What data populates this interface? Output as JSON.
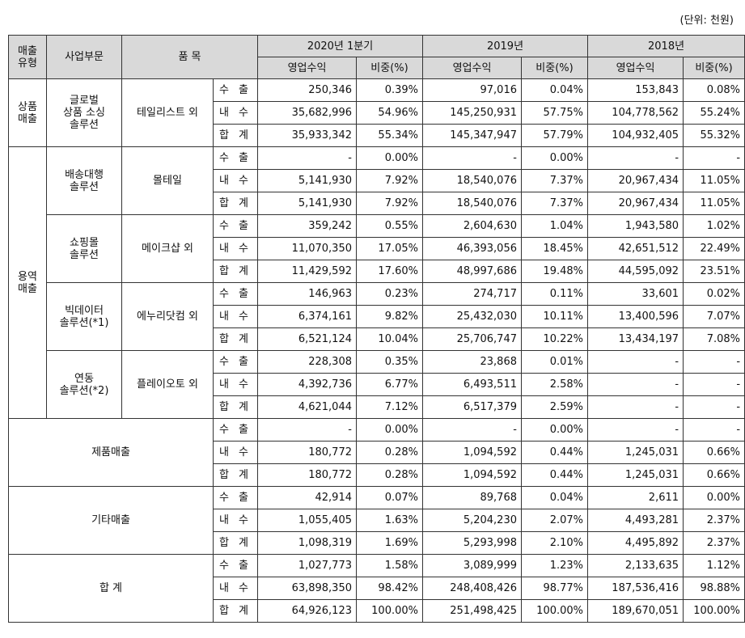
{
  "unit_note": "(단위: 천원)",
  "header": {
    "col_type": [
      "매출",
      "유형"
    ],
    "col_division": "사업부문",
    "col_item": "품 목",
    "periods": [
      "2020년 1분기",
      "2019년",
      "2018년"
    ],
    "sub_revenue": "영업수익",
    "sub_ratio": "비중(%)"
  },
  "groups": [
    {
      "type_lines": [
        "상품",
        "매출"
      ],
      "divisions": [
        {
          "name_lines": [
            "글로벌",
            "상품 소싱",
            "솔루션"
          ],
          "item": "테일리스트 외",
          "rows": [
            {
              "dir": "수 출",
              "v": [
                "250,346",
                "0.39%",
                "97,016",
                "0.04%",
                "153,843",
                "0.08%"
              ]
            },
            {
              "dir": "내 수",
              "v": [
                "35,682,996",
                "54.96%",
                "145,250,931",
                "57.75%",
                "104,778,562",
                "55.24%"
              ]
            },
            {
              "dir": "합 계",
              "v": [
                "35,933,342",
                "55.34%",
                "145,347,947",
                "57.79%",
                "104,932,405",
                "55.32%"
              ]
            }
          ]
        }
      ]
    },
    {
      "type_lines": [
        "용역",
        "매출"
      ],
      "divisions": [
        {
          "name_lines": [
            "배송대행",
            "솔루션"
          ],
          "item": "몰테일",
          "rows": [
            {
              "dir": "수 출",
              "v": [
                "-",
                "0.00%",
                "-",
                "0.00%",
                "-",
                "-"
              ]
            },
            {
              "dir": "내 수",
              "v": [
                "5,141,930",
                "7.92%",
                "18,540,076",
                "7.37%",
                "20,967,434",
                "11.05%"
              ]
            },
            {
              "dir": "합 계",
              "v": [
                "5,141,930",
                "7.92%",
                "18,540,076",
                "7.37%",
                "20,967,434",
                "11.05%"
              ]
            }
          ]
        },
        {
          "name_lines": [
            "쇼핑몰",
            "솔루션"
          ],
          "item": "메이크샵 외",
          "rows": [
            {
              "dir": "수 출",
              "v": [
                "359,242",
                "0.55%",
                "2,604,630",
                "1.04%",
                "1,943,580",
                "1.02%"
              ]
            },
            {
              "dir": "내 수",
              "v": [
                "11,070,350",
                "17.05%",
                "46,393,056",
                "18.45%",
                "42,651,512",
                "22.49%"
              ]
            },
            {
              "dir": "합 계",
              "v": [
                "11,429,592",
                "17.60%",
                "48,997,686",
                "19.48%",
                "44,595,092",
                "23.51%"
              ]
            }
          ]
        },
        {
          "name_lines": [
            "빅데이터",
            "솔루션(*1)"
          ],
          "item": "에누리닷컴 외",
          "rows": [
            {
              "dir": "수 출",
              "v": [
                "146,963",
                "0.23%",
                "274,717",
                "0.11%",
                "33,601",
                "0.02%"
              ]
            },
            {
              "dir": "내 수",
              "v": [
                "6,374,161",
                "9.82%",
                "25,432,030",
                "10.11%",
                "13,400,596",
                "7.07%"
              ]
            },
            {
              "dir": "합 계",
              "v": [
                "6,521,124",
                "10.04%",
                "25,706,747",
                "10.22%",
                "13,434,197",
                "7.08%"
              ]
            }
          ]
        },
        {
          "name_lines": [
            "연동",
            "솔루션(*2)"
          ],
          "item": "플레이오토 외",
          "rows": [
            {
              "dir": "수 출",
              "v": [
                "228,308",
                "0.35%",
                "23,868",
                "0.01%",
                "-",
                "-"
              ]
            },
            {
              "dir": "내 수",
              "v": [
                "4,392,736",
                "6.77%",
                "6,493,511",
                "2.58%",
                "-",
                "-"
              ]
            },
            {
              "dir": "합 계",
              "v": [
                "4,621,044",
                "7.12%",
                "6,517,379",
                "2.59%",
                "-",
                "-"
              ]
            }
          ]
        }
      ]
    },
    {
      "merged_label": "제품매출",
      "rows": [
        {
          "dir": "수 출",
          "v": [
            "-",
            "0.00%",
            "-",
            "0.00%",
            "-",
            "-"
          ]
        },
        {
          "dir": "내 수",
          "v": [
            "180,772",
            "0.28%",
            "1,094,592",
            "0.44%",
            "1,245,031",
            "0.66%"
          ]
        },
        {
          "dir": "합 계",
          "v": [
            "180,772",
            "0.28%",
            "1,094,592",
            "0.44%",
            "1,245,031",
            "0.66%"
          ]
        }
      ]
    },
    {
      "merged_label": "기타매출",
      "rows": [
        {
          "dir": "수 출",
          "v": [
            "42,914",
            "0.07%",
            "89,768",
            "0.04%",
            "2,611",
            "0.00%"
          ]
        },
        {
          "dir": "내 수",
          "v": [
            "1,055,405",
            "1.63%",
            "5,204,230",
            "2.07%",
            "4,493,281",
            "2.37%"
          ]
        },
        {
          "dir": "합 계",
          "v": [
            "1,098,319",
            "1.69%",
            "5,293,998",
            "2.10%",
            "4,495,892",
            "2.37%"
          ]
        }
      ]
    },
    {
      "merged_label": "합 계",
      "rows": [
        {
          "dir": "수 출",
          "v": [
            "1,027,773",
            "1.58%",
            "3,089,999",
            "1.23%",
            "2,133,635",
            "1.12%"
          ]
        },
        {
          "dir": "내 수",
          "v": [
            "63,898,350",
            "98.42%",
            "248,408,426",
            "98.77%",
            "187,536,416",
            "98.88%"
          ]
        },
        {
          "dir": "합 계",
          "v": [
            "64,926,123",
            "100.00%",
            "251,498,425",
            "100.00%",
            "189,670,051",
            "100.00%"
          ]
        }
      ]
    }
  ]
}
